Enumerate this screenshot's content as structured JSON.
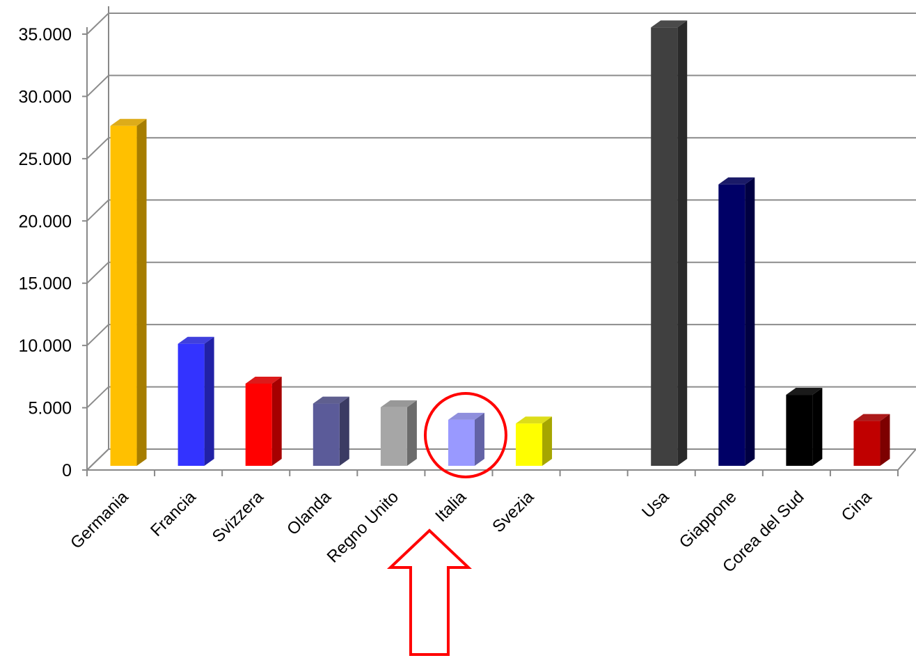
{
  "chart_data": {
    "type": "bar",
    "title": "",
    "xlabel": "",
    "ylabel": "",
    "ylim": [
      0,
      35000
    ],
    "yticks": [
      0,
      5000,
      10000,
      15000,
      20000,
      25000,
      30000,
      35000
    ],
    "ytick_labels": [
      "0",
      "5.000",
      "10.000",
      "15.000",
      "20.000",
      "25.000",
      "30.000",
      "35.000"
    ],
    "grid": true,
    "legend": "none",
    "categories": [
      "Germania",
      "Francia",
      "Svizzera",
      "Olanda",
      "Regno Unito",
      "Italia",
      "Svezia",
      "",
      "Usa",
      "Giappone",
      "Corea del Sud",
      "Cina"
    ],
    "values": [
      27300,
      9800,
      6600,
      5000,
      4700,
      3700,
      3400,
      null,
      35200,
      22600,
      5700,
      3600
    ],
    "colors": [
      "#FFC000",
      "#3333FF",
      "#FF0000",
      "#5B5B99",
      "#A6A6A6",
      "#9999FF",
      "#FFFF00",
      null,
      "#404040",
      "#000066",
      "#000000",
      "#C00000"
    ],
    "highlight": {
      "category": "Italia",
      "circle_color": "#FF0000",
      "arrow_color": "#FF0000"
    }
  }
}
